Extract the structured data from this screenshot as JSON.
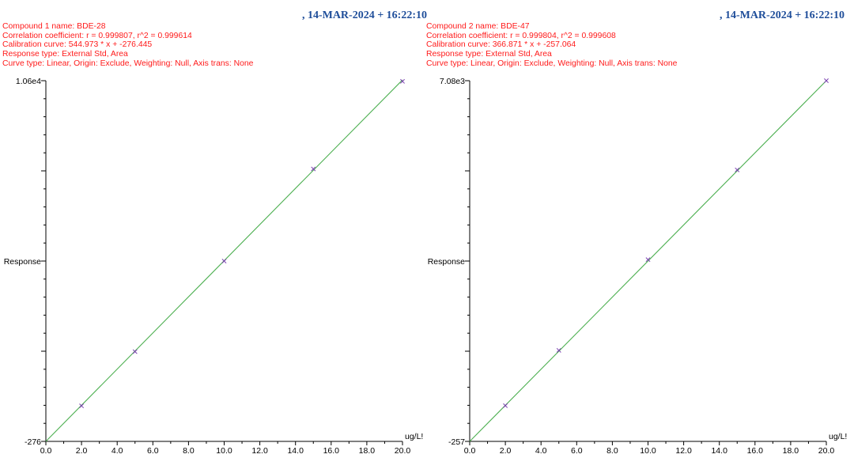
{
  "panels": [
    {
      "timestamp": ", 14-MAR-2024 + 16:22:10",
      "compound_line": "Compound 1 name: BDE-28",
      "correlation_line": "Correlation coefficient: r = 0.999807, r^2 = 0.999614",
      "calibration_line": "Calibration curve: 544.973 * x + -276.445",
      "response_type_line": "Response type: External Std, Area",
      "curve_type_line": "Curve type: Linear, Origin: Exclude, Weighting: Null, Axis trans: None"
    },
    {
      "timestamp": ", 14-MAR-2024 + 16:22:10",
      "compound_line": "Compound 2 name: BDE-47",
      "correlation_line": "Correlation coefficient: r = 0.999804, r^2 = 0.999608",
      "calibration_line": "Calibration curve: 366.871 * x + -257.064",
      "response_type_line": "Response type: External Std, Area",
      "curve_type_line": "Curve type: Linear, Origin: Exclude, Weighting: Null, Axis trans: None"
    }
  ],
  "chart_data": [
    {
      "type": "scatter",
      "xlabel": "ug/L!",
      "ylabel": "Response",
      "xlim": [
        0,
        20
      ],
      "ylim": [
        -276,
        10600
      ],
      "y_top_label": "1.06e4",
      "y_bottom_label": "-276",
      "x_tick_labels": [
        "0.0",
        "2.0",
        "4.0",
        "6.0",
        "8.0",
        "10.0",
        "12.0",
        "14.0",
        "16.0",
        "18.0",
        "20.0"
      ],
      "points": {
        "x": [
          2,
          5,
          10,
          15,
          20
        ],
        "y": [
          795,
          2430,
          5160,
          7940,
          10580
        ]
      },
      "fit": {
        "slope": 544.973,
        "intercept": -276.445
      },
      "colors": {
        "line": "#4caf50",
        "marker": "#7a3fb0",
        "axis": "#000000"
      }
    },
    {
      "type": "scatter",
      "xlabel": "ug/L!",
      "ylabel": "Response",
      "xlim": [
        0,
        20
      ],
      "ylim": [
        -257,
        7080
      ],
      "y_top_label": "7.08e3",
      "y_bottom_label": "-257",
      "x_tick_labels": [
        "0.0",
        "2.0",
        "4.0",
        "6.0",
        "8.0",
        "10.0",
        "12.0",
        "14.0",
        "16.0",
        "18.0",
        "20.0"
      ],
      "points": {
        "x": [
          2,
          5,
          10,
          15,
          20
        ],
        "y": [
          470,
          1595,
          3440,
          5265,
          7080
        ]
      },
      "fit": {
        "slope": 366.871,
        "intercept": -257.064
      },
      "colors": {
        "line": "#4caf50",
        "marker": "#7a3fb0",
        "axis": "#000000"
      }
    }
  ]
}
